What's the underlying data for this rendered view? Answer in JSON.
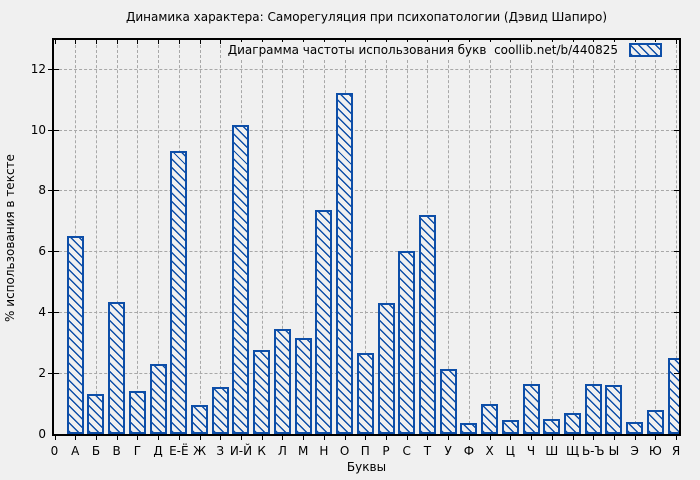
{
  "figure": {
    "title": "Динамика характера: Саморегуляция при психопатологии (Дэвид Шапиро)",
    "legend_label": "Диаграмма частоты использования букв  coollib.net/b/440825"
  },
  "chart_data": {
    "type": "bar",
    "title": "Динамика характера: Саморегуляция при психопатологии (Дэвид Шапиро)",
    "legend": "Диаграмма частоты использования букв  coollib.net/b/440825",
    "legend_position": "top-right",
    "categories": [
      "0",
      "А",
      "Б",
      "В",
      "Г",
      "Д",
      "Е-Ё",
      "Ж",
      "З",
      "И-Й",
      "К",
      "Л",
      "М",
      "Н",
      "О",
      "П",
      "Р",
      "С",
      "Т",
      "У",
      "Ф",
      "Х",
      "Ц",
      "Ч",
      "Ш",
      "Щ",
      "Ь-Ъ",
      "Ы",
      "Э",
      "Ю",
      "Я"
    ],
    "values": [
      0,
      6.5,
      1.3,
      4.35,
      1.4,
      2.3,
      9.3,
      0.95,
      1.55,
      10.15,
      2.75,
      3.45,
      3.15,
      7.35,
      11.2,
      2.65,
      4.3,
      6.0,
      7.2,
      2.15,
      0.35,
      1.0,
      0.45,
      1.65,
      0.5,
      0.7,
      1.65,
      1.6,
      0.4,
      0.8,
      2.5
    ],
    "xlabel": "Буквы",
    "ylabel": "% использования в тексте",
    "ylim": [
      0,
      12.94
    ],
    "y_ticks": [
      0,
      2,
      4,
      6,
      8,
      10,
      12
    ],
    "grid": true,
    "bar_style": "hatched"
  },
  "colors": {
    "background": "#f0f0f0",
    "bar": "#0d4ea8",
    "grid": "#a8a8a8",
    "frame": "#000000",
    "text": "#000000"
  }
}
